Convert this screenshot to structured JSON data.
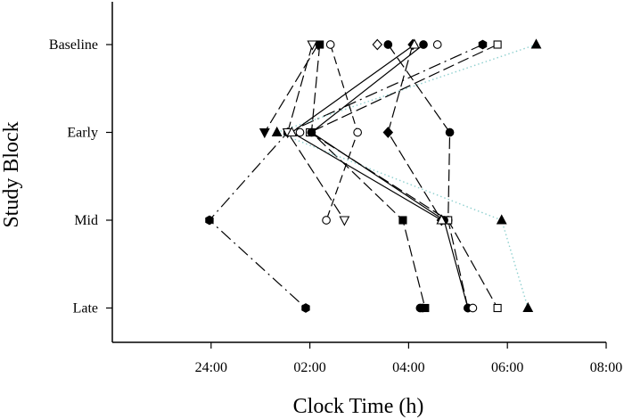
{
  "chart_data": {
    "type": "scatter",
    "title": "",
    "xlabel": "Clock Time (h)",
    "ylabel": "Study Block",
    "x_unit": "clock time (HH:MM)",
    "xlim": [
      "22:00",
      "08:00"
    ],
    "x_ticks": [
      "24:00",
      "02:00",
      "04:00",
      "06:00",
      "08:00"
    ],
    "y_categories": [
      "Late",
      "Mid",
      "Early",
      "Baseline"
    ],
    "grid": false,
    "legend": "none",
    "series": [
      {
        "marker": "filled-hexagon",
        "line": "long-dash-dot",
        "color": "#000000",
        "points": [
          [
            "Baseline",
            "05:30"
          ],
          [
            "Early",
            "01:33"
          ],
          [
            "Mid",
            "23:58"
          ],
          [
            "Late",
            "01:55"
          ]
        ]
      },
      {
        "marker": "filled-circle",
        "line": "long-dash",
        "color": "#000000",
        "points": [
          [
            "Baseline",
            "03:35"
          ],
          [
            "Early",
            "04:50"
          ],
          [
            "Mid",
            "04:48"
          ],
          [
            "Late",
            "05:12"
          ]
        ]
      },
      {
        "marker": "filled-square",
        "line": "long-dash",
        "color": "#000000",
        "points": [
          [
            "Baseline",
            "02:12"
          ],
          [
            "Early",
            "02:02"
          ],
          [
            "Mid",
            "03:53"
          ],
          [
            "Late",
            "04:20"
          ]
        ]
      },
      {
        "marker": "filled-triangle-down",
        "line": "long-dash",
        "color": "#000000",
        "points": [
          [
            "Baseline",
            "02:10"
          ],
          [
            "Early",
            "01:05"
          ]
        ]
      },
      {
        "marker": "filled-triangle-up",
        "line": "dotted",
        "color": "#8fd0cf",
        "points": [
          [
            "Baseline",
            "06:35"
          ],
          [
            "Early",
            "01:20"
          ],
          [
            "Mid",
            "05:53"
          ],
          [
            "Late",
            "06:25"
          ]
        ]
      },
      {
        "marker": "open-circle",
        "line": "dash",
        "color": "#000000",
        "points": [
          [
            "Baseline",
            "02:25"
          ],
          [
            "Early",
            "02:58"
          ],
          [
            "Mid",
            "02:20"
          ]
        ]
      },
      {
        "marker": "open-triangle-down",
        "line": "long-dash",
        "color": "#000000",
        "points": [
          [
            "Baseline",
            "02:03"
          ],
          [
            "Early",
            "01:33"
          ],
          [
            "Mid",
            "02:42"
          ]
        ]
      },
      {
        "marker": "filled-diamond",
        "line": "long-dash",
        "color": "#000000",
        "points": [
          [
            "Baseline",
            "04:05"
          ],
          [
            "Early",
            "03:35"
          ],
          [
            "Mid",
            "04:40"
          ]
        ]
      },
      {
        "marker": "open-square",
        "line": "long-dash",
        "color": "#000000",
        "points": [
          [
            "Baseline",
            "05:48"
          ],
          [
            "Early",
            "02:00"
          ],
          [
            "Mid",
            "04:48"
          ],
          [
            "Late",
            "05:48"
          ]
        ]
      },
      {
        "marker": "filled-circle",
        "line": "solid",
        "color": "#000000",
        "points": [
          [
            "Baseline",
            "04:18"
          ],
          [
            "Early",
            "02:02"
          ],
          [
            "Mid",
            "04:43"
          ],
          [
            "Late",
            "05:12"
          ]
        ]
      },
      {
        "marker": "open-triangle-up",
        "line": "solid",
        "color": "#000000",
        "points": [
          [
            "Baseline",
            "04:07"
          ],
          [
            "Early",
            "01:38"
          ],
          [
            "Mid",
            "04:40"
          ]
        ]
      },
      {
        "marker": "open-circle",
        "line": "none",
        "color": "#000000",
        "points": [
          [
            "Baseline",
            "04:35"
          ],
          [
            "Early",
            "01:48"
          ],
          [
            "Late",
            "05:18"
          ]
        ]
      },
      {
        "marker": "open-diamond",
        "line": "none",
        "color": "#000000",
        "points": [
          [
            "Baseline",
            "03:22"
          ]
        ]
      },
      {
        "marker": "filled-circle",
        "line": "none",
        "color": "#000000",
        "points": [
          [
            "Late",
            "04:14"
          ],
          [
            "Late",
            "04:17"
          ]
        ]
      }
    ]
  }
}
